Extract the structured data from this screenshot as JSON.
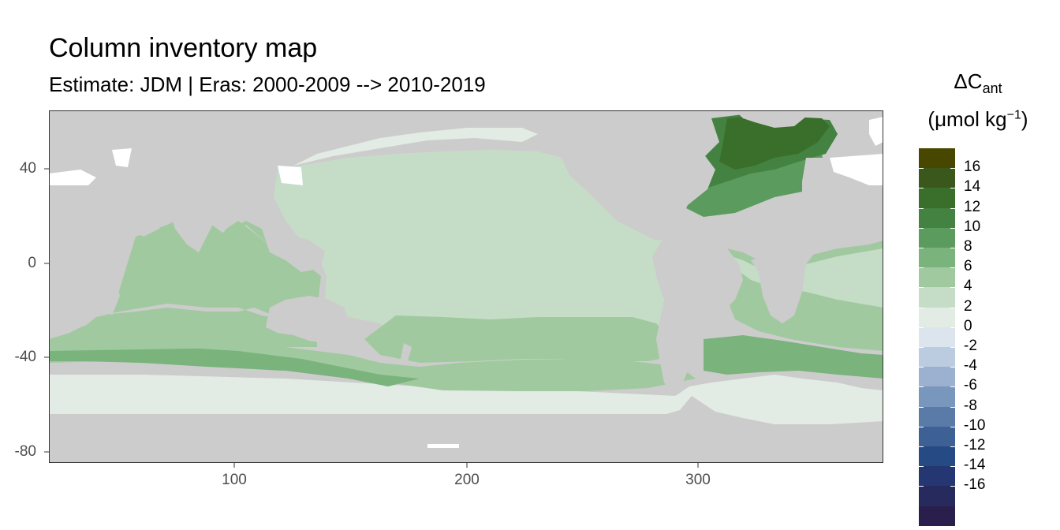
{
  "title": "Column inventory map",
  "subtitle": "Estimate: JDM  | Eras: 2000-2009 --> 2010-2019",
  "legend": {
    "title_symbol": "ΔC",
    "title_sub": "ant",
    "title_unit_pre": "(μmol kg",
    "title_unit_sup": "−1",
    "title_unit_post": ")",
    "bins": [
      {
        "color": "#474700"
      },
      {
        "color": "#3b581c"
      },
      {
        "color": "#3a6e2b"
      },
      {
        "color": "#438240"
      },
      {
        "color": "#5b9b5d"
      },
      {
        "color": "#7ab37c"
      },
      {
        "color": "#a1c9a0"
      },
      {
        "color": "#c5ddc7"
      },
      {
        "color": "#e2ebe4"
      },
      {
        "color": "#dce4ee"
      },
      {
        "color": "#bccce0"
      },
      {
        "color": "#9bb1cf"
      },
      {
        "color": "#7996bc"
      },
      {
        "color": "#5a7ba7"
      },
      {
        "color": "#3d6095"
      },
      {
        "color": "#264a84"
      },
      {
        "color": "#253772"
      },
      {
        "color": "#272a5c"
      },
      {
        "color": "#2a1e4d"
      }
    ],
    "labels": [
      "16",
      "14",
      "12",
      "10",
      "8",
      "6",
      "4",
      "2",
      "0",
      "-2",
      "-4",
      "-6",
      "-8",
      "-10",
      "-12",
      "-14",
      "-16"
    ]
  },
  "axes": {
    "x_ticks": [
      "100",
      "200",
      "300"
    ],
    "y_ticks": [
      "40",
      "0",
      "-40",
      "-80"
    ]
  },
  "colors": {
    "land": "#cccccc",
    "no_data": "#ffffff",
    "panel_border": "#333333"
  }
}
